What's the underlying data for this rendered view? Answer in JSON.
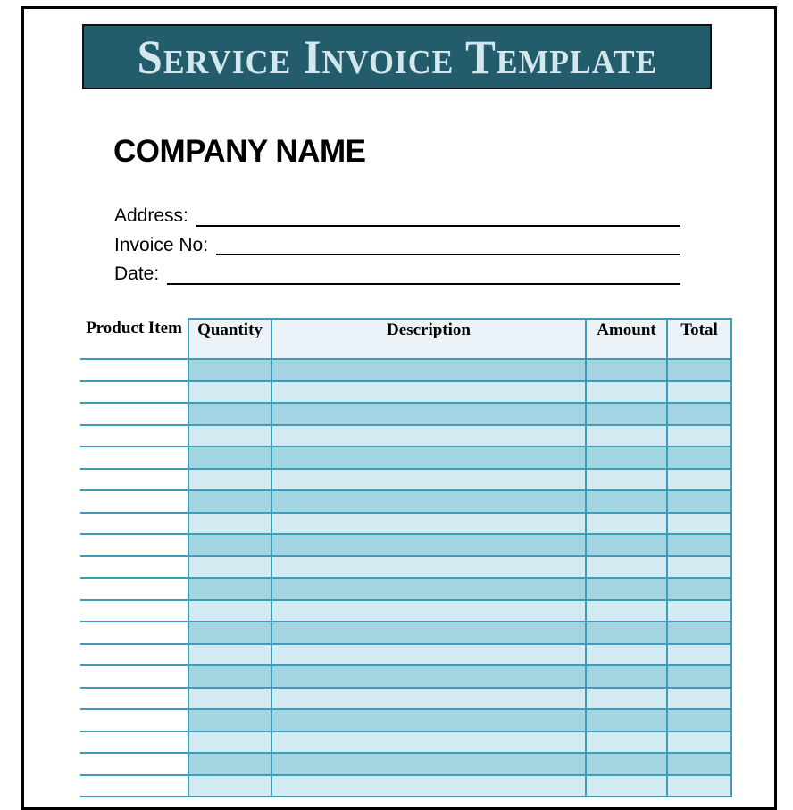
{
  "banner": {
    "title": "Service Invoice Template",
    "bg": "#235d6b",
    "text_color": "#d5e7ee"
  },
  "company": {
    "name": "COMPANY NAME"
  },
  "fields": [
    {
      "label": "Address:",
      "value": ""
    },
    {
      "label": "Invoice No:",
      "value": ""
    },
    {
      "label": "Date:",
      "value": ""
    }
  ],
  "table": {
    "columns": [
      {
        "key": "product",
        "label": "Product Item"
      },
      {
        "key": "quantity",
        "label": "Quantity"
      },
      {
        "key": "description",
        "label": "Description"
      },
      {
        "key": "amount",
        "label": "Amount"
      },
      {
        "key": "total",
        "label": "Total"
      }
    ],
    "rows": [
      [
        "",
        "",
        "",
        "",
        ""
      ],
      [
        "",
        "",
        "",
        "",
        ""
      ],
      [
        "",
        "",
        "",
        "",
        ""
      ],
      [
        "",
        "",
        "",
        "",
        ""
      ],
      [
        "",
        "",
        "",
        "",
        ""
      ],
      [
        "",
        "",
        "",
        "",
        ""
      ],
      [
        "",
        "",
        "",
        "",
        ""
      ],
      [
        "",
        "",
        "",
        "",
        ""
      ],
      [
        "",
        "",
        "",
        "",
        ""
      ],
      [
        "",
        "",
        "",
        "",
        ""
      ],
      [
        "",
        "",
        "",
        "",
        ""
      ],
      [
        "",
        "",
        "",
        "",
        ""
      ],
      [
        "",
        "",
        "",
        "",
        ""
      ],
      [
        "",
        "",
        "",
        "",
        ""
      ],
      [
        "",
        "",
        "",
        "",
        ""
      ],
      [
        "",
        "",
        "",
        "",
        ""
      ],
      [
        "",
        "",
        "",
        "",
        ""
      ],
      [
        "",
        "",
        "",
        "",
        ""
      ],
      [
        "",
        "",
        "",
        "",
        ""
      ],
      [
        "",
        "",
        "",
        "",
        ""
      ]
    ],
    "colors": {
      "header_bg": "#ecf3f8",
      "row_dark": "#a2d4e1",
      "row_light": "#d3eaf2",
      "border": "#3d9db8"
    }
  },
  "page": {
    "border_color": "#000000",
    "background": "#ffffff"
  }
}
